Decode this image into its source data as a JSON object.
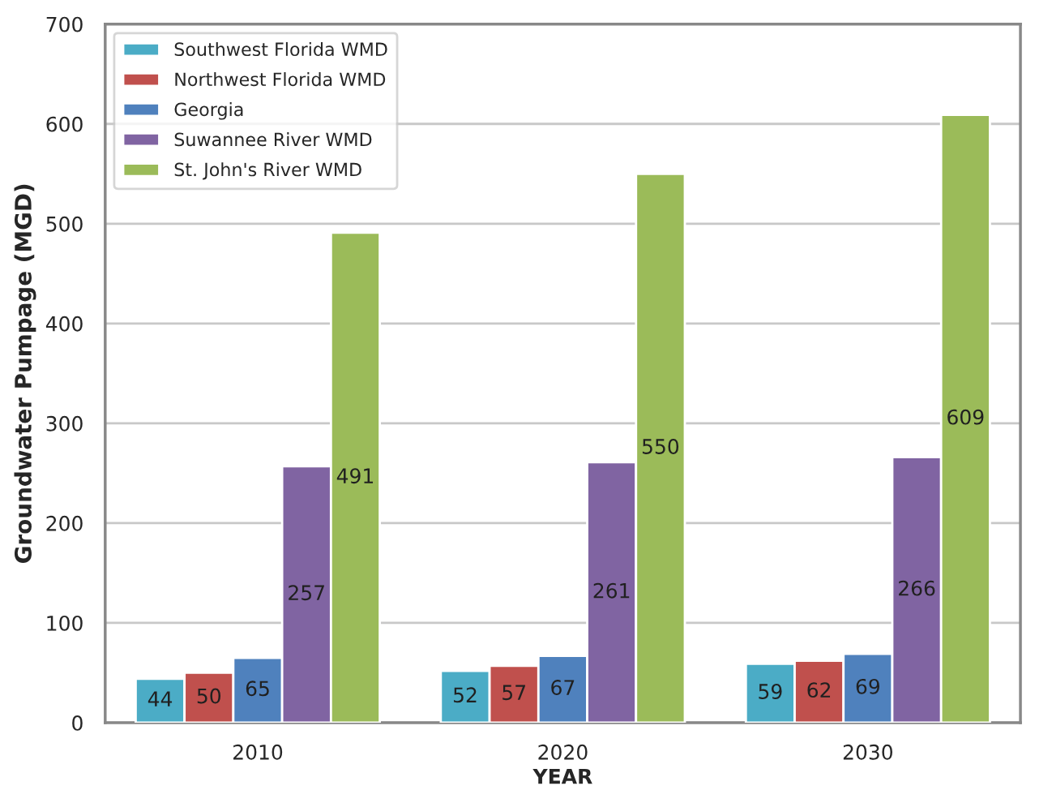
{
  "chart_data": {
    "type": "bar",
    "xlabel": "YEAR",
    "ylabel": "Groundwater Pumpage (MGD)",
    "categories": [
      "2010",
      "2020",
      "2030"
    ],
    "series": [
      {
        "name": "Southwest Florida WMD",
        "color": "#4bacc6",
        "values": [
          44,
          52,
          59
        ]
      },
      {
        "name": "Northwest Florida WMD",
        "color": "#c0504d",
        "values": [
          50,
          57,
          62
        ]
      },
      {
        "name": "Georgia",
        "color": "#4f81bd",
        "values": [
          65,
          67,
          69
        ]
      },
      {
        "name": "Suwannee River WMD",
        "color": "#8064a2",
        "values": [
          257,
          261,
          266
        ]
      },
      {
        "name": "St. John's River WMD",
        "color": "#9bbb59",
        "values": [
          491,
          550,
          609
        ]
      }
    ],
    "ylim": [
      0,
      700
    ],
    "yticks": [
      0,
      100,
      200,
      300,
      400,
      500,
      600,
      700
    ],
    "grid": "y",
    "legend": "top left",
    "data_labels": true
  }
}
